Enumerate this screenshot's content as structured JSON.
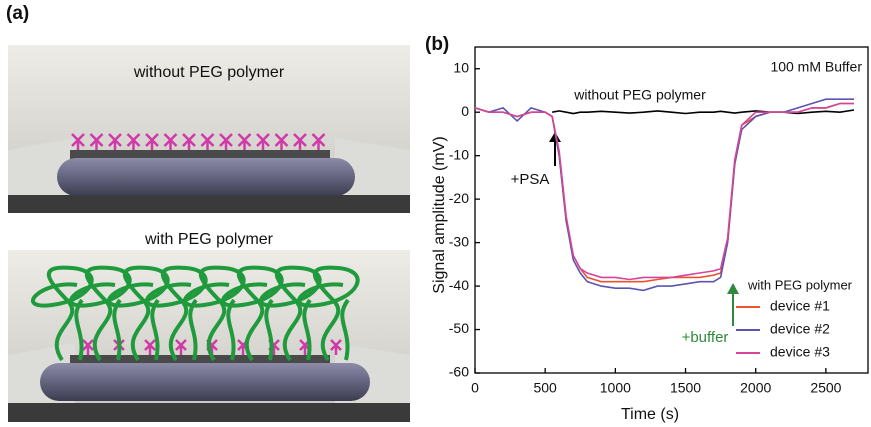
{
  "panel_a": {
    "label": "(a)",
    "top_caption": "without PEG polymer",
    "bottom_caption": "with PEG polymer"
  },
  "chart_data": {
    "type": "line",
    "panel_label": "(b)",
    "x_label": "Time (s)",
    "y_label": "Signal amplitude (mV)",
    "annotations": [
      "100 mM Buffer",
      "+PSA",
      "+buffer"
    ],
    "legend_title": "with PEG polymer",
    "xlim": [
      0,
      2800
    ],
    "xticks": [
      0,
      500,
      1000,
      1500,
      2000,
      2500
    ],
    "ylim": [
      -60,
      15
    ],
    "yticks": [
      -60,
      -50,
      -40,
      -30,
      -20,
      -10,
      0,
      10
    ],
    "x": [
      0,
      100,
      200,
      300,
      400,
      500,
      550,
      600,
      650,
      700,
      750,
      800,
      900,
      1000,
      1100,
      1200,
      1300,
      1400,
      1500,
      1600,
      1700,
      1750,
      1800,
      1850,
      1900,
      2000,
      2100,
      2200,
      2300,
      2400,
      2500,
      2600,
      2700
    ],
    "series": [
      {
        "name": "without PEG polymer",
        "color": "#000000",
        "values": [
          null,
          null,
          null,
          null,
          null,
          null,
          0,
          0.3,
          0,
          -0.3,
          0,
          0,
          0.2,
          0,
          -0.2,
          0,
          0.3,
          0,
          -0.3,
          0,
          0,
          0.2,
          0,
          -0.2,
          0,
          0.3,
          0,
          0,
          -0.3,
          0,
          0.2,
          0,
          0.5
        ]
      },
      {
        "name": "device #1",
        "color": "#f0522e",
        "values": [
          1,
          0,
          0,
          -1,
          0,
          0,
          -1,
          -10,
          -25,
          -33,
          -36,
          -38,
          -39,
          -39,
          -39,
          -39,
          -38.5,
          -38,
          -38,
          -38,
          -37.5,
          -37,
          -30,
          -12,
          -3,
          -1,
          0,
          0,
          0,
          1,
          1,
          2,
          2
        ]
      },
      {
        "name": "device #2",
        "color": "#5a55b0",
        "values": [
          1,
          0,
          1,
          -2,
          1,
          0,
          -1,
          -10,
          -25,
          -34,
          -37,
          -39,
          -40,
          -40.5,
          -40.5,
          -41,
          -40,
          -40,
          -39.5,
          -39,
          -39,
          -38,
          -30,
          -12,
          -4,
          -1,
          0,
          0,
          1,
          2,
          3,
          3,
          3
        ]
      },
      {
        "name": "device #3",
        "color": "#d4459a",
        "values": [
          1,
          0,
          0,
          -1,
          0,
          0,
          -1,
          -9,
          -24,
          -33,
          -36,
          -37,
          -38,
          -38,
          -38.5,
          -38,
          -38,
          -38,
          -37.5,
          -37,
          -36.5,
          -36,
          -29,
          -11,
          -3,
          0,
          0,
          0,
          0,
          1,
          1,
          2,
          2
        ]
      }
    ]
  }
}
